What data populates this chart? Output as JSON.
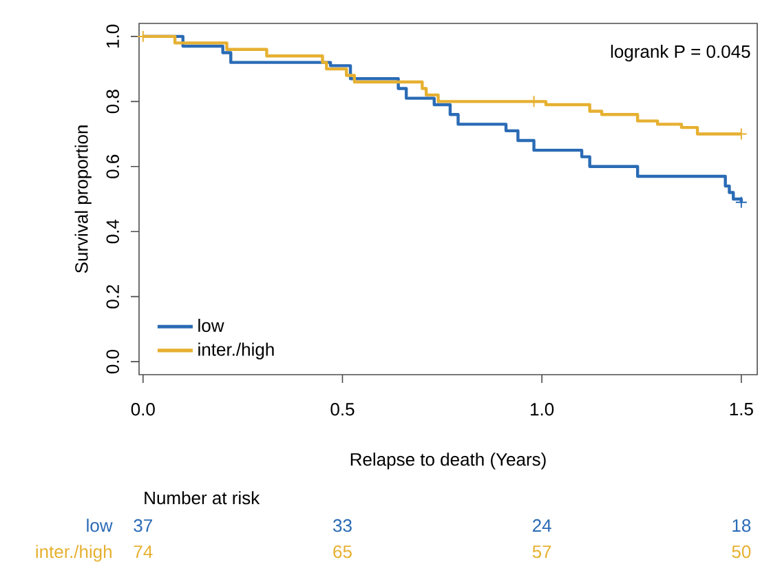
{
  "chart_data": {
    "type": "step",
    "xlabel": "Relapse to death (Years)",
    "ylabel": "Survival proportion",
    "xlim": [
      -0.01,
      1.54
    ],
    "ylim": [
      -0.04,
      1.04
    ],
    "xticks": [
      {
        "value": 0,
        "label": "0.0"
      },
      {
        "value": 0.5,
        "label": "0.5"
      },
      {
        "value": 1,
        "label": "1.0"
      },
      {
        "value": 1.5,
        "label": "1.5"
      }
    ],
    "yticks": [
      {
        "value": 0,
        "label": "0.0"
      },
      {
        "value": 0.2,
        "label": "0.2"
      },
      {
        "value": 0.4,
        "label": "0.4"
      },
      {
        "value": 0.6,
        "label": "0.6"
      },
      {
        "value": 0.8,
        "label": "0.8"
      },
      {
        "value": 1,
        "label": "1.0"
      }
    ],
    "grid": false,
    "legend": "bottom left",
    "series": [
      {
        "name": "low",
        "color": "#2a6bb5",
        "x": [
          0,
          0.1,
          0.2,
          0.22,
          0.47,
          0.52,
          0.64,
          0.66,
          0.73,
          0.77,
          0.79,
          0.91,
          0.94,
          0.98,
          1.1,
          1.12,
          1.24,
          1.46,
          1.47,
          1.48,
          1.5
        ],
        "values": [
          1.0,
          0.97,
          0.95,
          0.92,
          0.91,
          0.87,
          0.84,
          0.81,
          0.79,
          0.76,
          0.73,
          0.71,
          0.68,
          0.65,
          0.63,
          0.6,
          0.57,
          0.54,
          0.52,
          0.5,
          0.49
        ]
      },
      {
        "name": "inter./high",
        "color": "#e6b031",
        "x": [
          0,
          0.08,
          0.21,
          0.31,
          0.45,
          0.46,
          0.51,
          0.53,
          0.7,
          0.71,
          0.74,
          1.01,
          1.12,
          1.15,
          1.24,
          1.29,
          1.35,
          1.39,
          1.5
        ],
        "values": [
          1.0,
          0.98,
          0.96,
          0.94,
          0.92,
          0.9,
          0.88,
          0.86,
          0.84,
          0.82,
          0.8,
          0.79,
          0.77,
          0.76,
          0.74,
          0.73,
          0.72,
          0.7,
          0.7
        ]
      },
      {
        "type": "scatter",
        "marker": "cross",
        "color": "#2a6bb5",
        "x": [
          1.5
        ],
        "values": [
          0.49
        ]
      },
      {
        "type": "scatter",
        "marker": "cross",
        "color": "#e6b031",
        "x": [
          0,
          0.98,
          1.5
        ],
        "values": [
          1.0,
          0.8,
          0.7
        ]
      }
    ],
    "annotations": [
      "logrank P = 0.045",
      "Number at risk",
      "low",
      "37",
      "33",
      "24",
      "18",
      "inter./high",
      "74",
      "65",
      "57",
      "50"
    ]
  }
}
